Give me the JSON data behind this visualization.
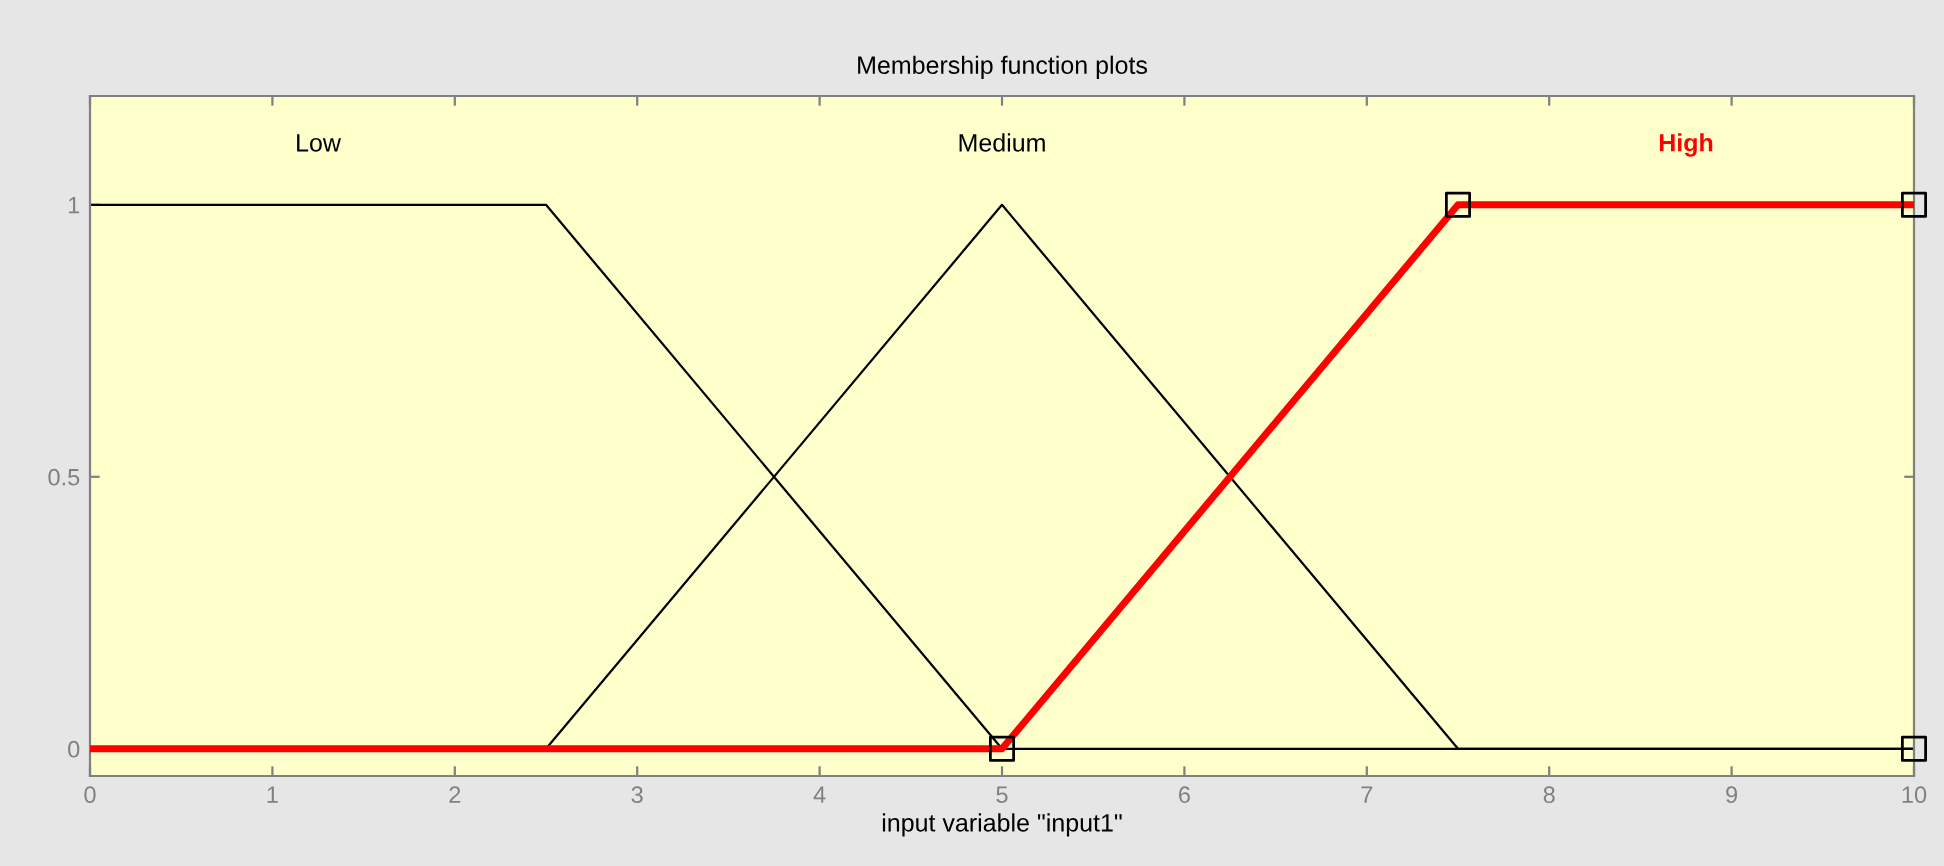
{
  "chart_data": {
    "type": "line",
    "title": "Membership function plots",
    "xlabel": "input variable \"input1\"",
    "xlim": [
      0,
      10
    ],
    "xticks": [
      0,
      1,
      2,
      3,
      4,
      5,
      6,
      7,
      8,
      9,
      10
    ],
    "ylim": [
      -0.05,
      1.2
    ],
    "yticks": [
      0,
      0.5,
      1
    ],
    "grid": false,
    "legend": false,
    "line_style": "solid",
    "series": [
      {
        "name": "Low",
        "color": "#000000",
        "x": [
          0,
          2.5,
          5,
          10
        ],
        "values": [
          1,
          1,
          0,
          0
        ]
      },
      {
        "name": "Medium",
        "color": "#000000",
        "x": [
          0,
          2.5,
          5,
          7.5,
          10
        ],
        "values": [
          0,
          0,
          1,
          0,
          0
        ]
      },
      {
        "name": "High",
        "color": "#ff0000",
        "x": [
          0,
          5,
          7.5,
          10
        ],
        "values": [
          0,
          0,
          1,
          1
        ]
      },
      {
        "type": "scatter",
        "marker": "square",
        "color": "#000000",
        "x": [
          5,
          7.5,
          10,
          10
        ],
        "values": [
          0,
          1,
          1,
          0
        ]
      }
    ]
  }
}
